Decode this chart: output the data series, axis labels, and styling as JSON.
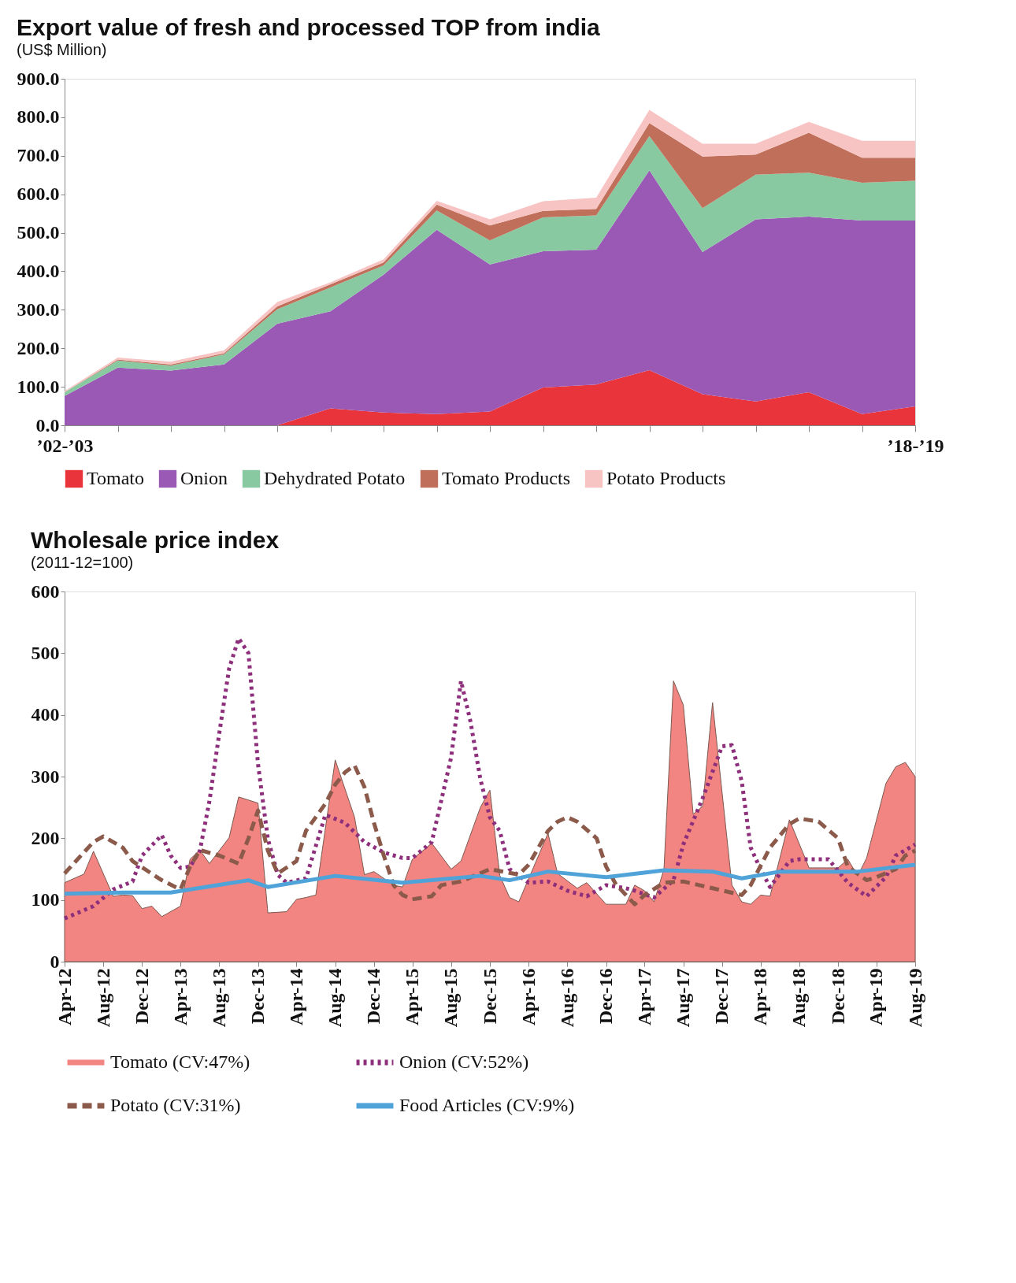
{
  "chart_data": [
    {
      "type": "area",
      "title": "Export value of fresh and processed TOP from india",
      "subtitle": "(US$ Million)",
      "stacked": true,
      "legend": "bottom",
      "categories": [
        "’02-’03",
        null,
        null,
        null,
        null,
        null,
        null,
        null,
        null,
        null,
        null,
        null,
        null,
        null,
        null,
        null,
        "’18-’19"
      ],
      "ylim": [
        0,
        900
      ],
      "yticks": [
        {
          "value": 0,
          "label": "0.0"
        },
        {
          "value": 100,
          "label": "100.0"
        },
        {
          "value": 200,
          "label": "200.0"
        },
        {
          "value": 300,
          "label": "300.0"
        },
        {
          "value": 400,
          "label": "400.0"
        },
        {
          "value": 500,
          "label": "500.0"
        },
        {
          "value": 600,
          "label": "600.0"
        },
        {
          "value": 700,
          "label": "700.0"
        },
        {
          "value": 800,
          "label": "800.0"
        },
        {
          "value": 900,
          "label": "900.0"
        }
      ],
      "series": [
        {
          "name": "Tomato",
          "color": "#e8343a",
          "values": [
            0,
            0,
            0,
            0,
            0,
            44,
            33,
            29,
            36,
            98,
            106,
            143,
            81,
            62,
            86,
            29,
            49
          ]
        },
        {
          "name": "Onion",
          "color": "#9b59b6",
          "values": [
            76,
            150,
            142,
            158,
            264,
            252,
            358,
            479,
            382,
            354,
            350,
            519,
            369,
            473,
            456,
            503,
            483
          ]
        },
        {
          "name": "Dehydrated Potato",
          "color": "#88c9a1",
          "values": [
            10,
            18,
            13,
            26,
            37,
            62,
            24,
            50,
            62,
            88,
            89,
            89,
            114,
            116,
            114,
            98,
            103
          ]
        },
        {
          "name": "Tomato Products",
          "color": "#c0705a",
          "values": [
            0,
            3,
            3,
            3,
            8,
            8,
            8,
            15,
            39,
            17,
            17,
            34,
            134,
            52,
            104,
            65,
            60
          ]
        },
        {
          "name": "Potato Products",
          "color": "#f7c3c3",
          "values": [
            3,
            5,
            7,
            8,
            11,
            5,
            8,
            10,
            16,
            25,
            29,
            34,
            33,
            28,
            28,
            44,
            44
          ]
        }
      ]
    },
    {
      "type": "line",
      "title": "Wholesale price index",
      "subtitle": "(2011-12=100)",
      "legend": "bottom",
      "xlim": [
        "2012-04",
        "2019-08"
      ],
      "xticks": [
        {
          "value": "2012-04",
          "label": "Apr-12"
        },
        {
          "value": "2012-08",
          "label": "Aug-12"
        },
        {
          "value": "2012-12",
          "label": "Dec-12"
        },
        {
          "value": "2013-04",
          "label": "Apr-13"
        },
        {
          "value": "2013-08",
          "label": "Aug-13"
        },
        {
          "value": "2013-12",
          "label": "Dec-13"
        },
        {
          "value": "2014-04",
          "label": "Apr-14"
        },
        {
          "value": "2014-08",
          "label": "Aug-14"
        },
        {
          "value": "2014-12",
          "label": "Dec-14"
        },
        {
          "value": "2015-04",
          "label": "Apr-15"
        },
        {
          "value": "2015-08",
          "label": "Aug-15"
        },
        {
          "value": "2015-12",
          "label": "Dec-15"
        },
        {
          "value": "2016-04",
          "label": "Apr-16"
        },
        {
          "value": "2016-08",
          "label": "Aug-16"
        },
        {
          "value": "2016-12",
          "label": "Dec-16"
        },
        {
          "value": "2017-04",
          "label": "Apr-17"
        },
        {
          "value": "2017-08",
          "label": "Aug-17"
        },
        {
          "value": "2017-12",
          "label": "Dec-17"
        },
        {
          "value": "2018-04",
          "label": "Apr-18"
        },
        {
          "value": "2018-08",
          "label": "Aug-18"
        },
        {
          "value": "2018-12",
          "label": "Dec-18"
        },
        {
          "value": "2019-04",
          "label": "Apr-19"
        },
        {
          "value": "2019-08",
          "label": "Aug-19"
        }
      ],
      "ylim": [
        0,
        600
      ],
      "yticks": [
        0,
        100,
        200,
        300,
        400,
        500,
        600
      ],
      "series": [
        {
          "name": "Tomato (CV:47%)",
          "type": "area",
          "color": "#f28482",
          "x": [
            "2012-04",
            "2012-06",
            "2012-07",
            "2012-09",
            "2012-10",
            "2012-11",
            "2012-12",
            "2013-01",
            "2013-02",
            "2013-04",
            "2013-05",
            "2013-06",
            "2013-07",
            "2013-09",
            "2013-10",
            "2013-12",
            "2014-01",
            "2014-03",
            "2014-04",
            "2014-05",
            "2014-06",
            "2014-08",
            "2014-10",
            "2014-11",
            "2014-12",
            "2015-02",
            "2015-03",
            "2015-04",
            "2015-06",
            "2015-08",
            "2015-09",
            "2015-11",
            "2015-12",
            "2016-01",
            "2016-02",
            "2016-03",
            "2016-06",
            "2016-07",
            "2016-09",
            "2016-10",
            "2016-12",
            "2017-02",
            "2017-03",
            "2017-04",
            "2017-05",
            "2017-06",
            "2017-07",
            "2017-08",
            "2017-09",
            "2017-10",
            "2017-11",
            "2018-01",
            "2018-02",
            "2018-03",
            "2018-04",
            "2018-05",
            "2018-06",
            "2018-07",
            "2018-09",
            "2018-12",
            "2019-01",
            "2019-02",
            "2019-03",
            "2019-05",
            "2019-06",
            "2019-07",
            "2019-08"
          ],
          "values": [
            128,
            142,
            179,
            106,
            108,
            107,
            86,
            90,
            73,
            90,
            166,
            181,
            159,
            201,
            267,
            257,
            79,
            81,
            101,
            104,
            108,
            327,
            234,
            141,
            146,
            124,
            121,
            166,
            192,
            150,
            163,
            250,
            278,
            140,
            104,
            97,
            208,
            143,
            119,
            128,
            93,
            93,
            124,
            115,
            97,
            150,
            455,
            416,
            239,
            252,
            420,
            124,
            97,
            93,
            108,
            106,
            168,
            230,
            152,
            152,
            166,
            139,
            168,
            289,
            316,
            323,
            300
          ]
        },
        {
          "name": "Onion (CV:52%)",
          "type": "line",
          "line_style": "dotted",
          "color": "#8e2f7c",
          "x": [
            "2012-04",
            "2012-07",
            "2012-09",
            "2012-11",
            "2012-12",
            "2013-02",
            "2013-03",
            "2013-04",
            "2013-05",
            "2013-06",
            "2013-07",
            "2013-08",
            "2013-09",
            "2013-10",
            "2013-11",
            "2013-12",
            "2014-01",
            "2014-02",
            "2014-03",
            "2014-05",
            "2014-07",
            "2014-09",
            "2014-11",
            "2015-01",
            "2015-03",
            "2015-04",
            "2015-06",
            "2015-08",
            "2015-09",
            "2015-10",
            "2015-11",
            "2015-12",
            "2016-01",
            "2016-02",
            "2016-04",
            "2016-06",
            "2016-08",
            "2016-10",
            "2016-12",
            "2017-02",
            "2017-03",
            "2017-05",
            "2017-07",
            "2017-08",
            "2017-10",
            "2017-12",
            "2018-01",
            "2018-02",
            "2018-03",
            "2018-04",
            "2018-05",
            "2018-07",
            "2018-08",
            "2018-11",
            "2019-01",
            "2019-03",
            "2019-05",
            "2019-06",
            "2019-08"
          ],
          "values": [
            70,
            90,
            117,
            130,
            172,
            205,
            172,
            152,
            154,
            180,
            260,
            370,
            475,
            524,
            500,
            320,
            199,
            141,
            128,
            135,
            238,
            225,
            194,
            177,
            168,
            168,
            194,
            331,
            455,
            389,
            296,
            234,
            212,
            150,
            128,
            130,
            115,
            106,
            124,
            119,
            115,
            104,
            132,
            190,
            265,
            349,
            351,
            292,
            185,
            150,
            121,
            163,
            166,
            166,
            128,
            106,
            137,
            172,
            190
          ]
        },
        {
          "name": "Potato (CV:31%)",
          "type": "line",
          "line_style": "dashed",
          "color": "#8b5a4a",
          "x": [
            "2012-04",
            "2012-07",
            "2012-08",
            "2012-10",
            "2012-11",
            "2013-02",
            "2013-04",
            "2013-05",
            "2013-06",
            "2013-08",
            "2013-10",
            "2013-11",
            "2013-12",
            "2014-01",
            "2014-02",
            "2014-04",
            "2014-05",
            "2014-07",
            "2014-08",
            "2014-09",
            "2014-10",
            "2014-11",
            "2014-12",
            "2015-01",
            "2015-02",
            "2015-03",
            "2015-04",
            "2015-06",
            "2015-07",
            "2015-09",
            "2015-12",
            "2016-03",
            "2016-04",
            "2016-06",
            "2016-07",
            "2016-08",
            "2016-09",
            "2016-11",
            "2016-12",
            "2017-01",
            "2017-03",
            "2017-04",
            "2017-06",
            "2017-08",
            "2017-11",
            "2018-02",
            "2018-03",
            "2018-05",
            "2018-07",
            "2018-08",
            "2018-10",
            "2018-12",
            "2019-01",
            "2019-03",
            "2019-04",
            "2019-06",
            "2019-07",
            "2019-08"
          ],
          "values": [
            143,
            194,
            203,
            185,
            163,
            132,
            117,
            154,
            181,
            172,
            159,
            200,
            245,
            180,
            143,
            163,
            212,
            256,
            287,
            307,
            318,
            283,
            225,
            172,
            124,
            108,
            101,
            106,
            124,
            130,
            150,
            141,
            157,
            212,
            227,
            234,
            227,
            200,
            154,
            125,
            93,
            108,
            128,
            130,
            119,
            108,
            124,
            185,
            223,
            232,
            227,
            200,
            154,
            132,
            137,
            150,
            172,
            180
          ]
        },
        {
          "name": "Food Articles (CV:9%)",
          "type": "line",
          "line_style": "solid",
          "color": "#4fa3d8",
          "x": [
            "2012-04",
            "2012-10",
            "2013-03",
            "2013-11",
            "2014-01",
            "2014-08",
            "2015-03",
            "2015-11",
            "2016-02",
            "2016-06",
            "2016-12",
            "2017-06",
            "2017-11",
            "2018-02",
            "2018-06",
            "2019-02",
            "2019-08"
          ],
          "values": [
            110,
            112,
            112,
            132,
            121,
            139,
            128,
            139,
            132,
            146,
            137,
            148,
            146,
            135,
            146,
            146,
            157
          ]
        }
      ]
    }
  ]
}
